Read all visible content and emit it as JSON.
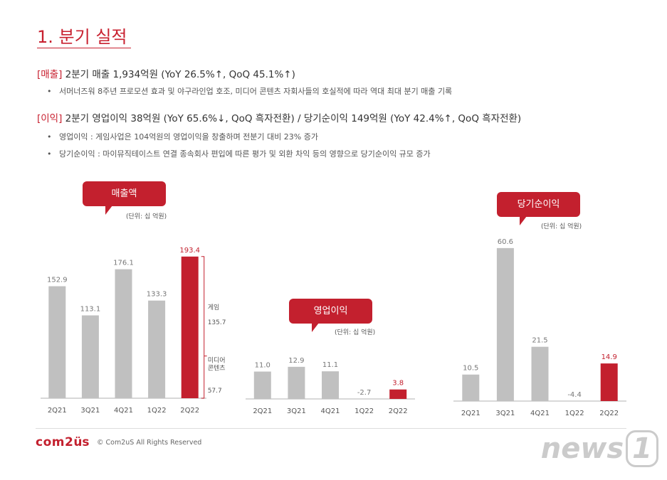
{
  "title": "1. 분기 실적",
  "revenue": {
    "tag": "[매출]",
    "text": " 2분기 매출 1,934억원 (YoY 26.5%↑, QoQ 45.1%↑)",
    "bullets": [
      "서머너즈워 8주년 프로모션 효과 및 야구라인업 호조, 미디어 콘텐츠 자회사들의 호실적에 따라 역대 최대 분기 매출 기록"
    ]
  },
  "profit": {
    "tag": "[이익]",
    "text": " 2분기 영업이익 38억원 (YoY 65.6%↓, QoQ 흑자전환) / 당기순이익 149억원 (YoY 42.4%↑, QoQ 흑자전환)",
    "bullets": [
      "영업이익 : 게임사업은 104억원의 영업이익을 창출하며 전분기 대비 23% 증가",
      "당기순이익 : 마이뮤직테이스트 연결 종속회사 편입에 따른 평가 및 외환 차익 등의 영향으로 당기순이익 규모 증가"
    ]
  },
  "colors": {
    "accent": "#c3202e",
    "bar": "#c0c0c0"
  },
  "chart_data": [
    {
      "type": "bar",
      "title": "매출액",
      "unit": "(단위: 십 억원)",
      "categories": [
        "2Q21",
        "3Q21",
        "4Q21",
        "1Q22",
        "2Q22"
      ],
      "values": [
        152.9,
        113.1,
        176.1,
        133.3,
        193.4
      ],
      "labels": [
        "152.9",
        "113.1",
        "176.1",
        "133.3",
        "193.4"
      ],
      "highlight": "2Q22",
      "breakdown": [
        {
          "name": "게임",
          "value": "135.7"
        },
        {
          "name": "미디어\n콘텐츠",
          "value": "57.7"
        }
      ]
    },
    {
      "type": "bar",
      "title": "영업이익",
      "unit": "(단위: 십 억원)",
      "categories": [
        "2Q21",
        "3Q21",
        "4Q21",
        "1Q22",
        "2Q22"
      ],
      "values": [
        11.0,
        12.9,
        11.1,
        -2.7,
        3.8
      ],
      "labels": [
        "11.0",
        "12.9",
        "11.1",
        "-2.7",
        "3.8"
      ],
      "highlight": "2Q22"
    },
    {
      "type": "bar",
      "title": "당기순이익",
      "unit": "(단위: 십 억원)",
      "categories": [
        "2Q21",
        "3Q21",
        "4Q21",
        "1Q22",
        "2Q22"
      ],
      "values": [
        10.5,
        60.6,
        21.5,
        -4.4,
        14.9
      ],
      "labels": [
        "10.5",
        "60.6",
        "21.5",
        "-4.4",
        "14.9"
      ],
      "highlight": "2Q22"
    }
  ],
  "footer": {
    "logo": "com2us",
    "copyright": "© Com2uS All Rights Reserved"
  },
  "watermark": "news1"
}
